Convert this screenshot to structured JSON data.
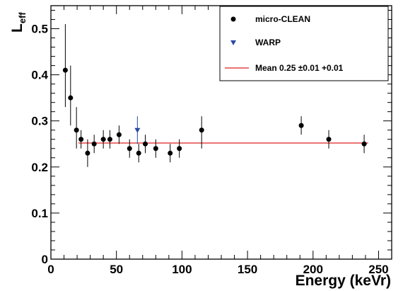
{
  "chart_data": {
    "type": "scatter",
    "xlabel": "Energy (keVr)",
    "ylabel": {
      "main": "L",
      "sub": "eff"
    },
    "xlim": [
      0,
      260
    ],
    "ylim": [
      0,
      0.55
    ],
    "x_ticks": [
      "0",
      "50",
      "100",
      "150",
      "200",
      "250"
    ],
    "y_ticks": [
      "0",
      "0.1",
      "0.2",
      "0.3",
      "0.4",
      "0.5"
    ],
    "grid": false,
    "legend_position": "top-right",
    "series": [
      {
        "name": "micro-CLEAN",
        "marker": "circle",
        "color": "#000000",
        "points": [
          {
            "x": 11,
            "y": 0.41,
            "ylow": 0.33,
            "yhigh": 0.51
          },
          {
            "x": 15,
            "y": 0.35,
            "ylow": 0.29,
            "yhigh": 0.42
          },
          {
            "x": 19.5,
            "y": 0.28,
            "ylow": 0.24,
            "yhigh": 0.33
          },
          {
            "x": 23,
            "y": 0.26,
            "ylow": 0.24,
            "yhigh": 0.28
          },
          {
            "x": 28,
            "y": 0.23,
            "ylow": 0.2,
            "yhigh": 0.26
          },
          {
            "x": 33,
            "y": 0.25,
            "ylow": 0.23,
            "yhigh": 0.27
          },
          {
            "x": 40,
            "y": 0.26,
            "ylow": 0.24,
            "yhigh": 0.28
          },
          {
            "x": 45,
            "y": 0.26,
            "ylow": 0.24,
            "yhigh": 0.28
          },
          {
            "x": 52,
            "y": 0.27,
            "ylow": 0.25,
            "yhigh": 0.29
          },
          {
            "x": 60,
            "y": 0.24,
            "ylow": 0.22,
            "yhigh": 0.26
          },
          {
            "x": 67,
            "y": 0.23,
            "ylow": 0.21,
            "yhigh": 0.25
          },
          {
            "x": 72,
            "y": 0.25,
            "ylow": 0.23,
            "yhigh": 0.27
          },
          {
            "x": 80,
            "y": 0.24,
            "ylow": 0.22,
            "yhigh": 0.26
          },
          {
            "x": 91,
            "y": 0.23,
            "ylow": 0.21,
            "yhigh": 0.25
          },
          {
            "x": 98,
            "y": 0.24,
            "ylow": 0.22,
            "yhigh": 0.26
          },
          {
            "x": 115,
            "y": 0.28,
            "ylow": 0.24,
            "yhigh": 0.31
          },
          {
            "x": 191,
            "y": 0.29,
            "ylow": 0.27,
            "yhigh": 0.31
          },
          {
            "x": 212,
            "y": 0.26,
            "ylow": 0.24,
            "yhigh": 0.28
          },
          {
            "x": 239,
            "y": 0.25,
            "ylow": 0.23,
            "yhigh": 0.27
          }
        ]
      },
      {
        "name": "WARP",
        "marker": "triangle-down",
        "color": "#2a4aa6",
        "points": [
          {
            "x": 66,
            "y": 0.28,
            "ylow": 0.25,
            "yhigh": 0.31
          }
        ]
      }
    ],
    "fit_line": {
      "label": "Mean 0.25  ±0.01 +0.01",
      "color": "#e02020",
      "y": 0.252,
      "x_range": [
        21,
        242
      ]
    }
  }
}
